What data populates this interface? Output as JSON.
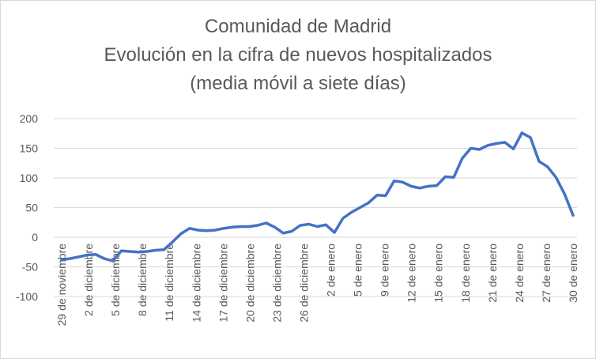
{
  "chart_data": {
    "type": "line",
    "title": [
      "Comunidad de Madrid",
      "Evolución en la cifra de nuevos hospitalizados",
      "(media móvil a siete días)"
    ],
    "xlabel": "",
    "ylabel": "",
    "ylim": [
      -100,
      200
    ],
    "yticks": [
      200,
      150,
      100,
      50,
      0,
      -50,
      -100
    ],
    "grid": true,
    "legend": "none",
    "line_color": "#4472C4",
    "gridline_color": "#d9d9d9",
    "x_tick_labels": [
      "29 de noviembre",
      "2 de diciembre",
      "5 de diciembre",
      "8 de diciembre",
      "11 de diciembre",
      "14 de diciembre",
      "17 de diciembre",
      "20 de diciembre",
      "23 de diciembre",
      "26 de diciembre",
      "2 de enero",
      "5 de enero",
      "9 de enero",
      "12 de enero",
      "15 de enero",
      "18 de enero",
      "21 de enero",
      "24 de enero",
      "27 de enero",
      "30 de enero"
    ],
    "series": [
      {
        "values": [
          -38,
          -36,
          -33,
          -30,
          -29,
          -36,
          -40,
          -23,
          -24,
          -25,
          -24,
          -22,
          -21,
          -8,
          6,
          15,
          12,
          11,
          12,
          15,
          17,
          18,
          18,
          20,
          24,
          17,
          7,
          10,
          20,
          22,
          18,
          21,
          8,
          32,
          42,
          50,
          58,
          71,
          70,
          95,
          93,
          86,
          83,
          86,
          87,
          102,
          101,
          133,
          150,
          148,
          155,
          158,
          160,
          149,
          176,
          168,
          128,
          119,
          101,
          73,
          37
        ]
      }
    ]
  }
}
